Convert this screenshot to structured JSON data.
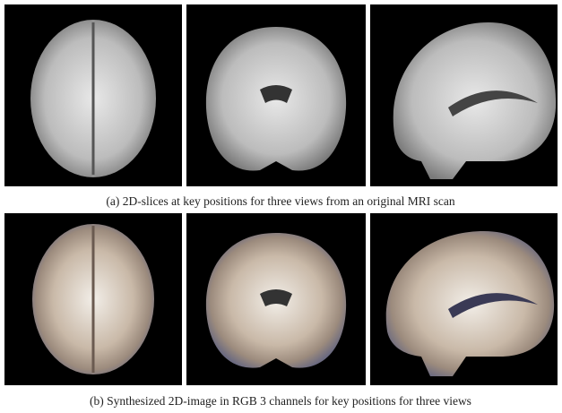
{
  "figure": {
    "rows": [
      {
        "caption": "(a) 2D-slices at key positions for three views from an original MRI scan"
      },
      {
        "caption": "(b) Synthesized 2D-image in RGB 3 channels for key positions for three views"
      }
    ]
  }
}
